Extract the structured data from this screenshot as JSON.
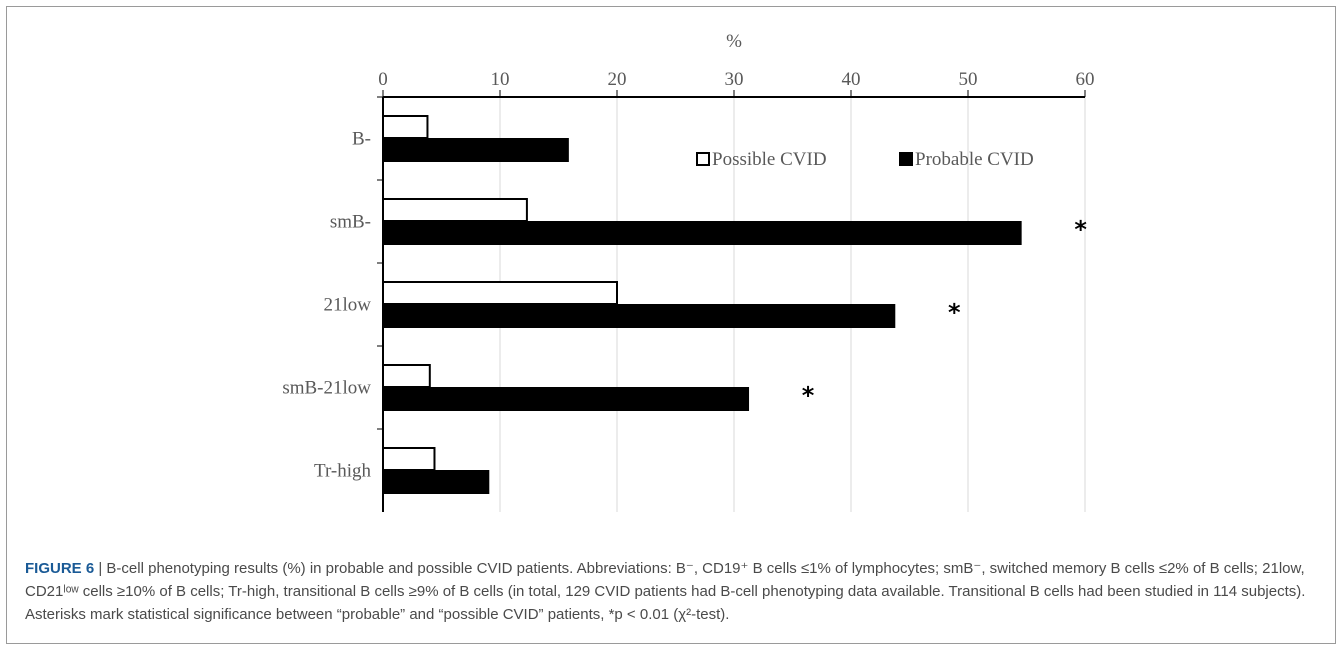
{
  "chart_data": {
    "type": "bar",
    "orientation": "horizontal",
    "axis_label": "%",
    "axis_position": "top",
    "xlim": [
      0,
      60
    ],
    "ticks": [
      0,
      10,
      20,
      30,
      40,
      50,
      60
    ],
    "tick_labels": [
      "0",
      "10",
      "20",
      "30",
      "40",
      "50",
      "60"
    ],
    "grid": true,
    "categories": [
      "B-",
      "smB-",
      "21low",
      "smB-21low",
      "Tr-high"
    ],
    "series": [
      {
        "name": "Possible CVID",
        "values": [
          3.8,
          12.3,
          20.0,
          4.0,
          4.4
        ],
        "color": "#ffffff",
        "stroke": "#000000"
      },
      {
        "name": "Probable CVID",
        "values": [
          15.8,
          54.5,
          43.7,
          31.2,
          9.0
        ],
        "color": "#000000",
        "stroke": "#000000"
      }
    ],
    "annotations": [
      {
        "category": "smB-",
        "text": "*"
      },
      {
        "category": "21low",
        "text": "*"
      },
      {
        "category": "smB-21low",
        "text": "*"
      }
    ],
    "legend": {
      "placement": "top-right",
      "entries": [
        "Possible CVID",
        "Probable CVID"
      ]
    }
  },
  "caption": {
    "label": "FIGURE 6",
    "separator": " | ",
    "text": "B-cell phenotyping results (%) in probable and possible CVID patients. Abbreviations: B⁻, CD19⁺ B cells ≤1% of lymphocytes; smB⁻, switched memory B cells ≤2% of B cells; 21low, CD21ˡᵒʷ cells ≥10% of B cells; Tr-high, transitional B cells ≥9% of B cells (in total, 129 CVID patients had B-cell phenotyping data available. Transitional B cells had been studied in 114 subjects). Asterisks mark statistical significance between “probable” and “possible CVID” patients, *p < 0.01 (χ²-test)."
  }
}
